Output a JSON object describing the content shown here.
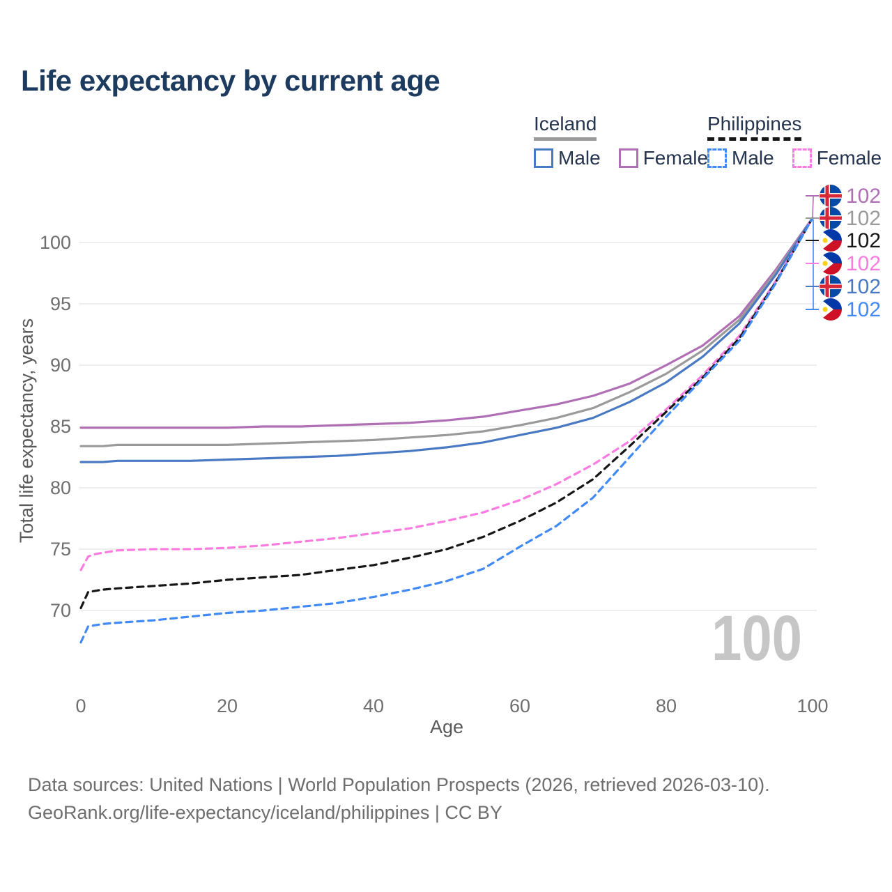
{
  "title": "Life expectancy by current age",
  "legend": {
    "groups": [
      {
        "country": "Iceland",
        "line_style": "solid",
        "underline_color": "#9a9a9a",
        "items": [
          {
            "label": "Male",
            "color": "#4a79c4",
            "dash": "solid"
          },
          {
            "label": "Female",
            "color": "#b06fb5",
            "dash": "solid"
          }
        ]
      },
      {
        "country": "Philippines",
        "line_style": "dashed",
        "underline_color": "#161616",
        "items": [
          {
            "label": "Male",
            "color": "#418af5",
            "dash": "dashed"
          },
          {
            "label": "Female",
            "color": "#fb7ce0",
            "dash": "dashed"
          }
        ]
      }
    ]
  },
  "chart_data": {
    "type": "line",
    "title": "Life expectancy by current age",
    "xlabel": "Age",
    "ylabel": "Total life expectancy, years",
    "xlim": [
      0,
      100
    ],
    "ylim": [
      66,
      103
    ],
    "x_ticks": [
      "0",
      "20",
      "40",
      "60",
      "80",
      "100"
    ],
    "x_tick_values": [
      0,
      20,
      40,
      60,
      80,
      100
    ],
    "y_ticks": [
      "70",
      "75",
      "80",
      "85",
      "90",
      "95",
      "100"
    ],
    "y_tick_values": [
      70,
      75,
      80,
      85,
      90,
      95,
      100
    ],
    "grid": "horizontal",
    "gridline_color": "#e9e9e9",
    "axis_text_color": "#6e6e6e",
    "watermark": "100",
    "watermark_color": "#c6c6c6",
    "x": [
      0,
      1,
      2,
      3,
      5,
      10,
      15,
      20,
      25,
      30,
      35,
      40,
      45,
      50,
      55,
      60,
      65,
      70,
      75,
      80,
      85,
      90,
      95,
      100
    ],
    "series": [
      {
        "name": "Iceland Female",
        "country": "Iceland",
        "sex": "Female",
        "color": "#b06fb5",
        "dash": "solid",
        "values": [
          84.9,
          84.9,
          84.9,
          84.9,
          84.9,
          84.9,
          84.9,
          84.9,
          85.0,
          85.0,
          85.1,
          85.2,
          85.3,
          85.5,
          85.8,
          86.3,
          86.8,
          87.5,
          88.5,
          90.0,
          91.6,
          94.0,
          97.8,
          102.0
        ]
      },
      {
        "name": "Iceland Both sexes",
        "country": "Iceland",
        "sex": "Both",
        "color": "#9a9a9a",
        "dash": "solid",
        "values": [
          83.4,
          83.4,
          83.4,
          83.4,
          83.5,
          83.5,
          83.5,
          83.5,
          83.6,
          83.7,
          83.8,
          83.9,
          84.1,
          84.3,
          84.6,
          85.1,
          85.7,
          86.5,
          87.8,
          89.3,
          91.2,
          93.7,
          97.6,
          102.0
        ]
      },
      {
        "name": "Iceland Male",
        "country": "Iceland",
        "sex": "Male",
        "color": "#4a79c4",
        "dash": "solid",
        "values": [
          82.1,
          82.1,
          82.1,
          82.1,
          82.2,
          82.2,
          82.2,
          82.3,
          82.4,
          82.5,
          82.6,
          82.8,
          83.0,
          83.3,
          83.7,
          84.3,
          84.9,
          85.7,
          87.0,
          88.6,
          90.7,
          93.4,
          97.4,
          102.0
        ]
      },
      {
        "name": "Philippines Female",
        "country": "Philippines",
        "sex": "Female",
        "color": "#fb7ce0",
        "dash": "dashed",
        "values": [
          73.3,
          74.4,
          74.6,
          74.7,
          74.9,
          75.0,
          75.0,
          75.1,
          75.3,
          75.6,
          75.9,
          76.3,
          76.7,
          77.3,
          78.0,
          79.0,
          80.3,
          81.9,
          83.8,
          86.4,
          89.2,
          92.4,
          96.9,
          102.0
        ]
      },
      {
        "name": "Philippines Both sexes",
        "country": "Philippines",
        "sex": "Both",
        "color": "#161616",
        "dash": "dashed",
        "values": [
          70.2,
          71.5,
          71.6,
          71.7,
          71.8,
          72.0,
          72.2,
          72.5,
          72.7,
          72.9,
          73.3,
          73.7,
          74.3,
          75.0,
          76.0,
          77.3,
          78.8,
          80.7,
          83.4,
          86.2,
          89.0,
          92.2,
          96.8,
          102.0
        ]
      },
      {
        "name": "Philippines Male",
        "country": "Philippines",
        "sex": "Male",
        "color": "#418af5",
        "dash": "dashed",
        "values": [
          67.4,
          68.7,
          68.8,
          68.9,
          69.0,
          69.2,
          69.5,
          69.8,
          70.0,
          70.3,
          70.6,
          71.1,
          71.7,
          72.4,
          73.4,
          75.2,
          76.9,
          79.2,
          82.5,
          85.8,
          88.9,
          92.0,
          96.7,
          102.0
        ]
      }
    ],
    "end_labels": [
      {
        "value": "102",
        "flag": "iceland",
        "color": "#b06fb5"
      },
      {
        "value": "102",
        "flag": "iceland",
        "color": "#9a9a9a"
      },
      {
        "value": "102",
        "flag": "philippines",
        "color": "#161616"
      },
      {
        "value": "102",
        "flag": "philippines",
        "color": "#fb7ce0"
      },
      {
        "value": "102",
        "flag": "iceland",
        "color": "#4a79c4"
      },
      {
        "value": "102",
        "flag": "philippines",
        "color": "#418af5"
      }
    ],
    "legend_position": "top-right"
  },
  "footer": {
    "line1": "Data sources: United Nations | World Population Prospects (2026, retrieved 2026-03-10).",
    "line2": "GeoRank.org/life-expectancy/iceland/philippines | CC BY"
  }
}
